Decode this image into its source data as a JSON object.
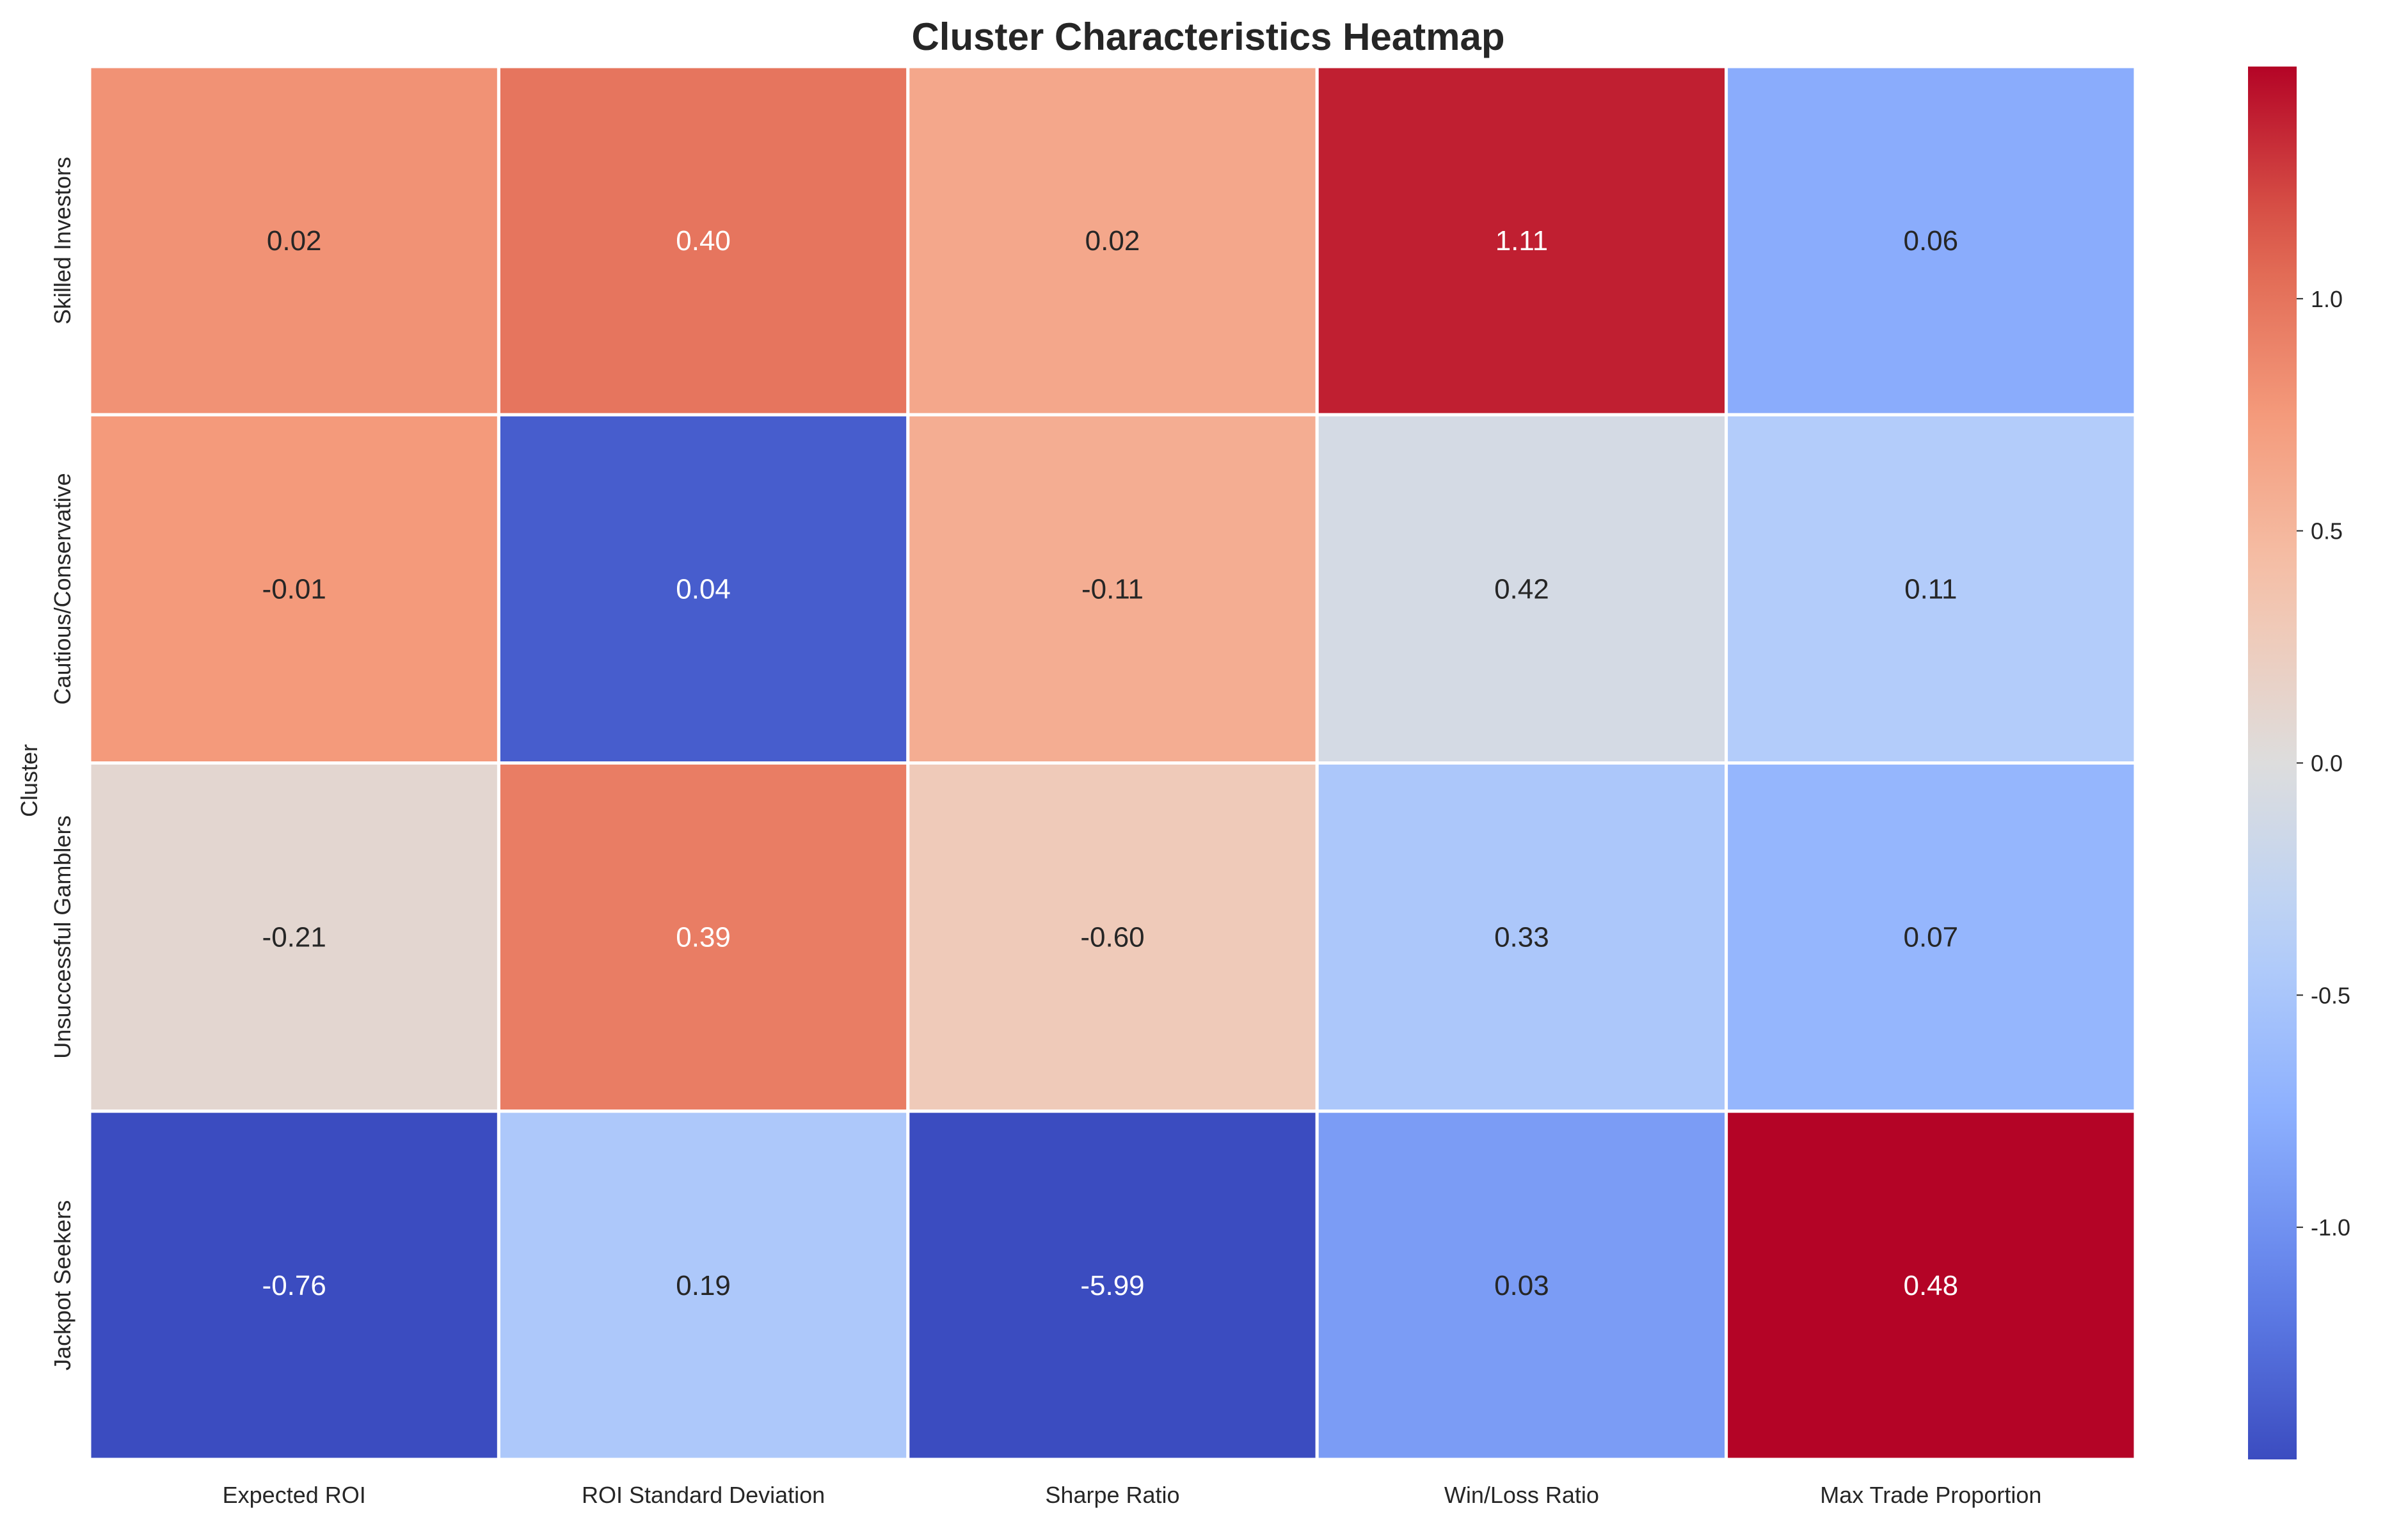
{
  "chart_data": {
    "type": "heatmap",
    "title": "Cluster Characteristics Heatmap",
    "xlabel": "",
    "ylabel": "Cluster",
    "columns": [
      "Expected ROI",
      "ROI Standard Deviation",
      "Sharpe Ratio",
      "Win/Loss Ratio",
      "Max Trade Proportion"
    ],
    "rows": [
      "Skilled Investors",
      "Cautious/Conservative",
      "Unsuccessful Gamblers",
      "Jackpot Seekers"
    ],
    "values": [
      [
        0.02,
        0.4,
        0.02,
        1.11,
        0.06
      ],
      [
        -0.01,
        0.04,
        -0.11,
        0.42,
        0.11
      ],
      [
        -0.21,
        0.39,
        -0.6,
        0.33,
        0.07
      ],
      [
        -0.76,
        0.19,
        -5.99,
        0.03,
        0.48
      ]
    ],
    "annotations": [
      [
        "0.02",
        "0.40",
        "0.02",
        "1.11",
        "0.06"
      ],
      [
        "-0.01",
        "0.04",
        "-0.11",
        "0.42",
        "0.11"
      ],
      [
        "-0.21",
        "0.39",
        "-0.60",
        "0.33",
        "0.07"
      ],
      [
        "-0.76",
        "0.19",
        "-5.99",
        "0.03",
        "0.48"
      ]
    ],
    "color_scale": {
      "colormap": "coolwarm",
      "vmin": -1.5,
      "vmax": 1.5,
      "ticks": [
        -1.0,
        -0.5,
        0.0,
        0.5,
        1.0
      ],
      "tick_labels": [
        "-1.0",
        "-0.5",
        "0.0",
        "0.5",
        "1.0"
      ],
      "note_scale": "colors reflect column-wise standardized (z-score) values"
    },
    "cell_z": [
      [
        0.8,
        0.99,
        0.63,
        1.39,
        -0.78
      ],
      [
        0.75,
        -1.38,
        0.58,
        -0.09,
        -0.42
      ],
      [
        0.1,
        0.94,
        0.28,
        -0.48,
        -0.68
      ],
      [
        -1.52,
        -0.47,
        -1.55,
        -0.91,
        1.58
      ]
    ],
    "grid": true,
    "legend": "right"
  }
}
